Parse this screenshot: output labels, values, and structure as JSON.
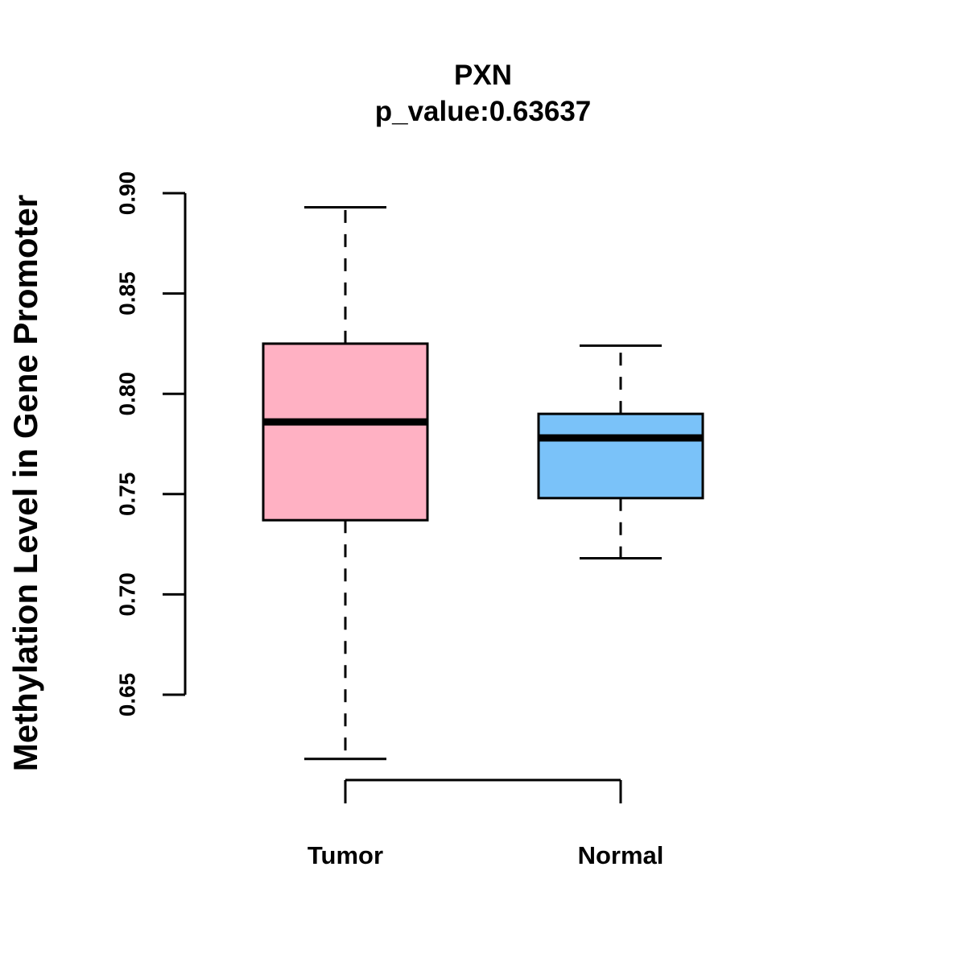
{
  "chart_data": {
    "type": "boxplot",
    "title": "PXN",
    "subtitle": "p_value:0.63637",
    "xlabel": "",
    "ylabel": "Methylation Level in Gene Promoter",
    "ylim": [
      0.65,
      0.9
    ],
    "yticks": [
      0.65,
      0.7,
      0.75,
      0.8,
      0.85,
      0.9
    ],
    "ytick_labels": [
      "0.65",
      "0.70",
      "0.75",
      "0.80",
      "0.85",
      "0.90"
    ],
    "categories": [
      "Tumor",
      "Normal"
    ],
    "series": [
      {
        "name": "Tumor",
        "min": 0.618,
        "q1": 0.737,
        "median": 0.786,
        "q3": 0.825,
        "max": 0.893,
        "color": "#FFB1C3"
      },
      {
        "name": "Normal",
        "min": 0.718,
        "q1": 0.748,
        "median": 0.778,
        "q3": 0.79,
        "max": 0.824,
        "color": "#7AC2F9"
      }
    ],
    "grid": false,
    "legend": "none"
  }
}
